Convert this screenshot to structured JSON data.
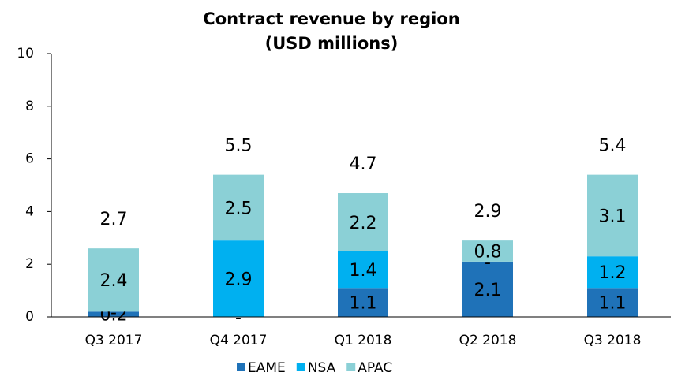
{
  "chart_data": {
    "type": "stacked_bar",
    "title": "Contract revenue by region",
    "subtitle": "(USD millions)",
    "categories": [
      "Q3 2017",
      "Q4 2017",
      "Q1 2018",
      "Q2 2018",
      "Q3 2018"
    ],
    "series": [
      {
        "name": "EAME",
        "color": "#1f72b8",
        "values": [
          0.2,
          0,
          1.1,
          2.1,
          1.1
        ],
        "value_labels": [
          "0.2",
          "-",
          "1.1",
          "2.1",
          "1.1"
        ]
      },
      {
        "name": "NSA",
        "color": "#00b0f0",
        "values": [
          0,
          2.9,
          1.4,
          0,
          1.2
        ],
        "value_labels": [
          "-",
          "2.9",
          "1.4",
          "-",
          "1.2"
        ]
      },
      {
        "name": "APAC",
        "color": "#8bd0d6",
        "values": [
          2.4,
          2.5,
          2.2,
          0.8,
          3.1
        ],
        "value_labels": [
          "2.4",
          "2.5",
          "2.2",
          "0.8",
          "3.1"
        ]
      }
    ],
    "totals": [
      2.7,
      5.5,
      4.7,
      2.9,
      5.4
    ],
    "ylim": [
      0,
      10
    ],
    "yticks": [
      0,
      2,
      4,
      6,
      8,
      10
    ],
    "grid": false,
    "legend": "bottom"
  }
}
